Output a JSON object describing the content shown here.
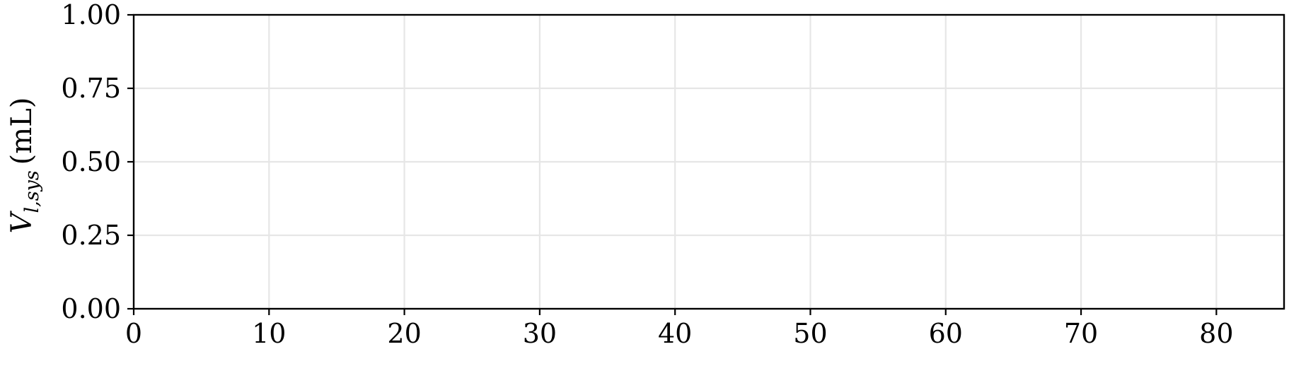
{
  "chart_data": {
    "type": "line",
    "title": "",
    "xlabel": "",
    "ylabel": "V_{l,sys} (mL)",
    "ylabel_parts": {
      "main": "V",
      "subscript": "l,sys",
      "unit": "(mL)"
    },
    "xlim": [
      0,
      85
    ],
    "ylim": [
      0.0,
      1.0
    ],
    "x_ticks": [
      0,
      10,
      20,
      30,
      40,
      50,
      60,
      70,
      80
    ],
    "x_tick_labels": [
      "0",
      "10",
      "20",
      "30",
      "40",
      "50",
      "60",
      "70",
      "80"
    ],
    "y_ticks": [
      0.0,
      0.25,
      0.5,
      0.75,
      1.0
    ],
    "y_tick_labels": [
      "0.00",
      "0.25",
      "0.50",
      "0.75",
      "1.00"
    ],
    "grid": true,
    "series": [],
    "colors": {
      "grid": "#e6e6e6",
      "axis": "#000000",
      "background": "#ffffff"
    }
  }
}
